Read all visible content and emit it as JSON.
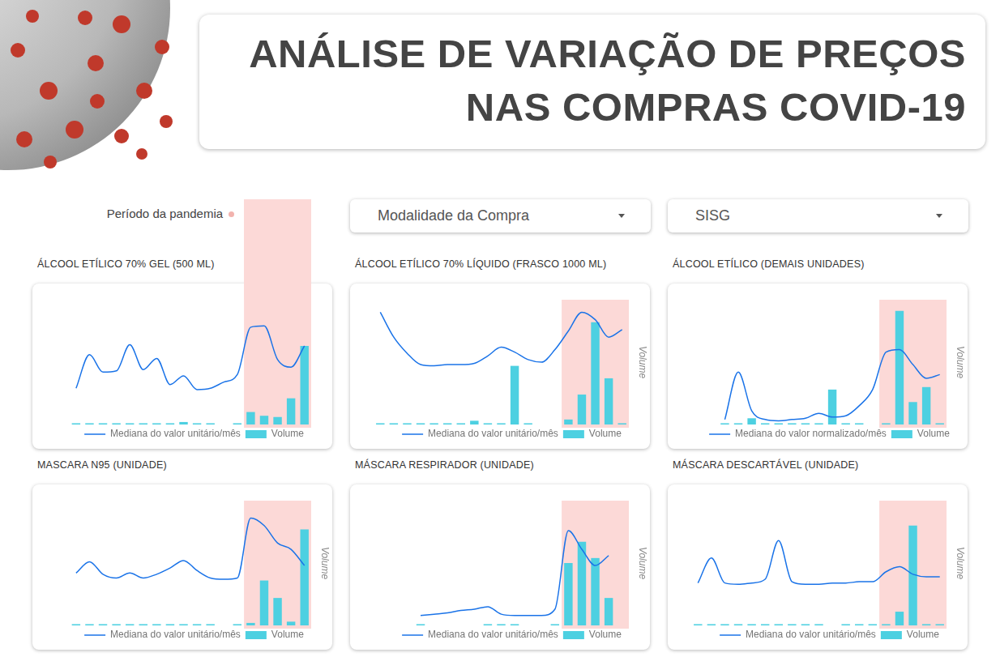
{
  "page": {
    "title": [
      "ANÁLISE DE VARIAÇÃO DE PREÇOS",
      "NAS COMPRAS COVID-19"
    ],
    "filters": [
      "Modalidade da Compra",
      "SISG"
    ],
    "annotation": "Período da pandemia"
  },
  "chart_data": [
    {
      "type": "bar",
      "title": "ÁLCOOL ETÍLICO 70% GEL (500 ML)",
      "categories": [
        null,
        null,
        null,
        null,
        null,
        null,
        null,
        null,
        null,
        null,
        null,
        null,
        null,
        null,
        null,
        null,
        null,
        null,
        null
      ],
      "series": [
        {
          "name": "Mediana do valor unitário/mês",
          "type": "line",
          "color": "#1a73e8",
          "values": [
            null,
            29,
            56,
            42,
            43,
            64,
            44,
            53,
            32,
            39,
            28,
            29,
            34,
            40,
            78,
            79,
            52,
            46,
            63
          ]
        },
        {
          "name": "Volume",
          "type": "bar",
          "color": "#4dd0e1",
          "axis": "y2",
          "values": [
            null,
            1,
            1,
            1,
            1,
            1,
            1,
            1,
            1,
            2,
            1,
            1,
            null,
            1,
            10,
            7,
            6,
            21,
            63
          ]
        }
      ],
      "ylim": [
        0,
        100
      ],
      "y2lim": [
        0,
        100
      ],
      "highlight": [
        14,
        18
      ],
      "grid": false,
      "tick_labels": false,
      "legend": "bottom"
    },
    {
      "type": "bar",
      "title": "ÁLCOOL ETÍLICO 70% LÍQUIDO (FRASCO 1000 ML)",
      "categories": [
        null,
        null,
        null,
        null,
        null,
        null,
        null,
        null,
        null,
        null,
        null,
        null,
        null,
        null,
        null,
        null,
        null,
        null,
        null
      ],
      "series": [
        {
          "name": "Mediana do valor unitário/mês",
          "type": "line",
          "color": "#1a73e8",
          "values": [
            90,
            70,
            57,
            48,
            47,
            48,
            48,
            49,
            55,
            62,
            58,
            52,
            50,
            60,
            75,
            90,
            84,
            70,
            76
          ]
        },
        {
          "name": "Volume",
          "type": "bar",
          "color": "#4dd0e1",
          "axis": "y2",
          "values": [
            1,
            1,
            1,
            1,
            1,
            1,
            1,
            3,
            1,
            1,
            47,
            1,
            null,
            null,
            4,
            24,
            82,
            37,
            1
          ]
        }
      ],
      "ylim": [
        0,
        100
      ],
      "y2lim": [
        0,
        100
      ],
      "y2label": "Volume",
      "highlight": [
        14,
        18
      ],
      "grid": false,
      "tick_labels": false,
      "legend": "bottom"
    },
    {
      "type": "bar",
      "title": "ÁLCOOL ETÍLICO (DEMAIS UNIDADES)",
      "categories": [
        null,
        null,
        null,
        null,
        null,
        null,
        null,
        null,
        null,
        null,
        null,
        null,
        null,
        null,
        null,
        null,
        null,
        null,
        null
      ],
      "series": [
        {
          "name": "Mediana do valor normalizado/mês",
          "type": "line",
          "color": "#1a73e8",
          "values": [
            null,
            null,
            4,
            42,
            11,
            4,
            3,
            4,
            5,
            9,
            6,
            7,
            15,
            28,
            58,
            60,
            48,
            37,
            40
          ]
        },
        {
          "name": "Volume",
          "type": "bar",
          "color": "#4dd0e1",
          "axis": "y2",
          "values": [
            null,
            null,
            1,
            1,
            5,
            1,
            1,
            1,
            1,
            1,
            28,
            1,
            1,
            null,
            1,
            91,
            18,
            30,
            1
          ]
        }
      ],
      "ylim": [
        0,
        100
      ],
      "y2lim": [
        0,
        100
      ],
      "y2label": "Volume",
      "highlight": [
        14,
        18
      ],
      "grid": false,
      "tick_labels": false,
      "legend": "bottom"
    },
    {
      "type": "bar",
      "title": "MASCARA N95 (UNIDADE)",
      "categories": [
        null,
        null,
        null,
        null,
        null,
        null,
        null,
        null,
        null,
        null,
        null,
        null,
        null,
        null,
        null,
        null,
        null,
        null,
        null
      ],
      "series": [
        {
          "name": "Mediana do valor unitário/mês",
          "type": "line",
          "color": "#1a73e8",
          "values": [
            null,
            42,
            51,
            41,
            38,
            42,
            38,
            41,
            46,
            52,
            44,
            38,
            37,
            38,
            86,
            80,
            66,
            61,
            48
          ]
        },
        {
          "name": "Volume",
          "type": "bar",
          "color": "#4dd0e1",
          "axis": "y2",
          "values": [
            null,
            1,
            1,
            1,
            1,
            1,
            1,
            1,
            1,
            1,
            1,
            1,
            null,
            1,
            2,
            36,
            22,
            3,
            77
          ]
        }
      ],
      "ylim": [
        0,
        100
      ],
      "y2lim": [
        0,
        100
      ],
      "y2label": "Volume",
      "highlight": [
        14,
        18
      ],
      "grid": false,
      "tick_labels": false,
      "legend": "bottom"
    },
    {
      "type": "bar",
      "title": "MÁSCARA RESPIRADOR (UNIDADE)",
      "categories": [
        null,
        null,
        null,
        null,
        null,
        null,
        null,
        null,
        null,
        null,
        null,
        null,
        null,
        null,
        null,
        null,
        null,
        null,
        null
      ],
      "series": [
        {
          "name": "Mediana do valor unitário/mês",
          "type": "line",
          "color": "#1a73e8",
          "values": [
            null,
            null,
            null,
            8,
            9,
            10,
            12,
            13,
            15,
            9,
            8,
            8,
            8,
            13,
            76,
            61,
            48,
            56,
            null
          ]
        },
        {
          "name": "Volume",
          "type": "bar",
          "color": "#4dd0e1",
          "axis": "y2",
          "values": [
            null,
            null,
            null,
            1,
            null,
            null,
            null,
            null,
            1,
            1,
            1,
            null,
            null,
            1,
            50,
            67,
            54,
            22,
            null
          ]
        }
      ],
      "ylim": [
        0,
        100
      ],
      "y2lim": [
        0,
        100
      ],
      "y2label": "Volume",
      "highlight": [
        14,
        18
      ],
      "grid": false,
      "tick_labels": false,
      "legend": "bottom"
    },
    {
      "type": "bar",
      "title": "MÁSCARA DESCARTÁVEL (UNIDADE)",
      "categories": [
        null,
        null,
        null,
        null,
        null,
        null,
        null,
        null,
        null,
        null,
        null,
        null,
        null,
        null,
        null,
        null,
        null,
        null,
        null
      ],
      "series": [
        {
          "name": "Mediana do valor unitário/mês",
          "type": "line",
          "color": "#1a73e8",
          "values": [
            34,
            54,
            34,
            33,
            34,
            37,
            68,
            35,
            33,
            33,
            34,
            34,
            35,
            35,
            43,
            47,
            41,
            39,
            39
          ]
        },
        {
          "name": "Volume",
          "type": "bar",
          "color": "#4dd0e1",
          "axis": "y2",
          "values": [
            1,
            1,
            1,
            1,
            1,
            1,
            1,
            1,
            1,
            1,
            null,
            1,
            1,
            1,
            1,
            11,
            80,
            1,
            1
          ]
        }
      ],
      "ylim": [
        0,
        100
      ],
      "y2lim": [
        0,
        100
      ],
      "y2label": "Volume",
      "highlight": [
        14,
        18
      ],
      "grid": false,
      "tick_labels": false,
      "legend": "bottom"
    }
  ]
}
